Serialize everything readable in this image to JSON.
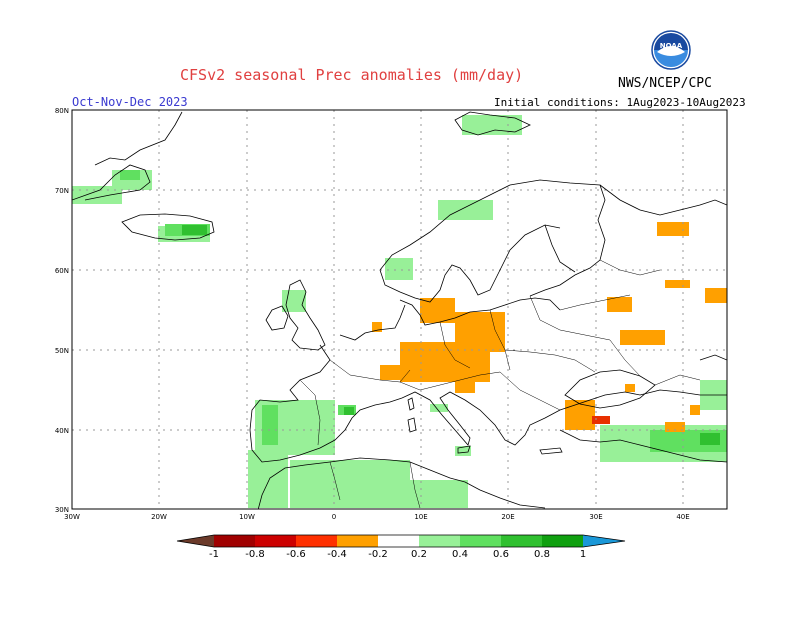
{
  "header": {
    "title": "CFSv2 seasonal Prec anomalies (mm/day)",
    "season": "Oct-Nov-Dec 2023",
    "initial_conditions": "Initial conditions: 1Aug2023-10Aug2023",
    "org": "NWS/NCEP/CPC",
    "logo_text": "NOAA"
  },
  "map": {
    "region": "Europe",
    "lon_range": [
      -30,
      45
    ],
    "lat_range": [
      30,
      80
    ],
    "lon_ticks": [
      "30W",
      "20W",
      "10W",
      "0",
      "10E",
      "20E",
      "30E",
      "40E"
    ],
    "lat_ticks": [
      "80N",
      "70N",
      "60N",
      "50N",
      "40N",
      "30N"
    ],
    "colors": {
      "dry_strong": "#6b3a2a",
      "dry_1": "#a00000",
      "dry_08": "#cc0000",
      "dry_06": "#e83000",
      "dry_04": "#ff6000",
      "dry_02": "#ffa000",
      "wet_02": "#98f098",
      "wet_04": "#60e060",
      "wet_06": "#30c030",
      "wet_08": "#10a010",
      "wet_1": "#1a98d8"
    }
  },
  "colorbar": {
    "labels": [
      "-1",
      "-0.8",
      "-0.6",
      "-0.4",
      "-0.2",
      "0.2",
      "0.4",
      "0.6",
      "0.8",
      "1"
    ]
  }
}
